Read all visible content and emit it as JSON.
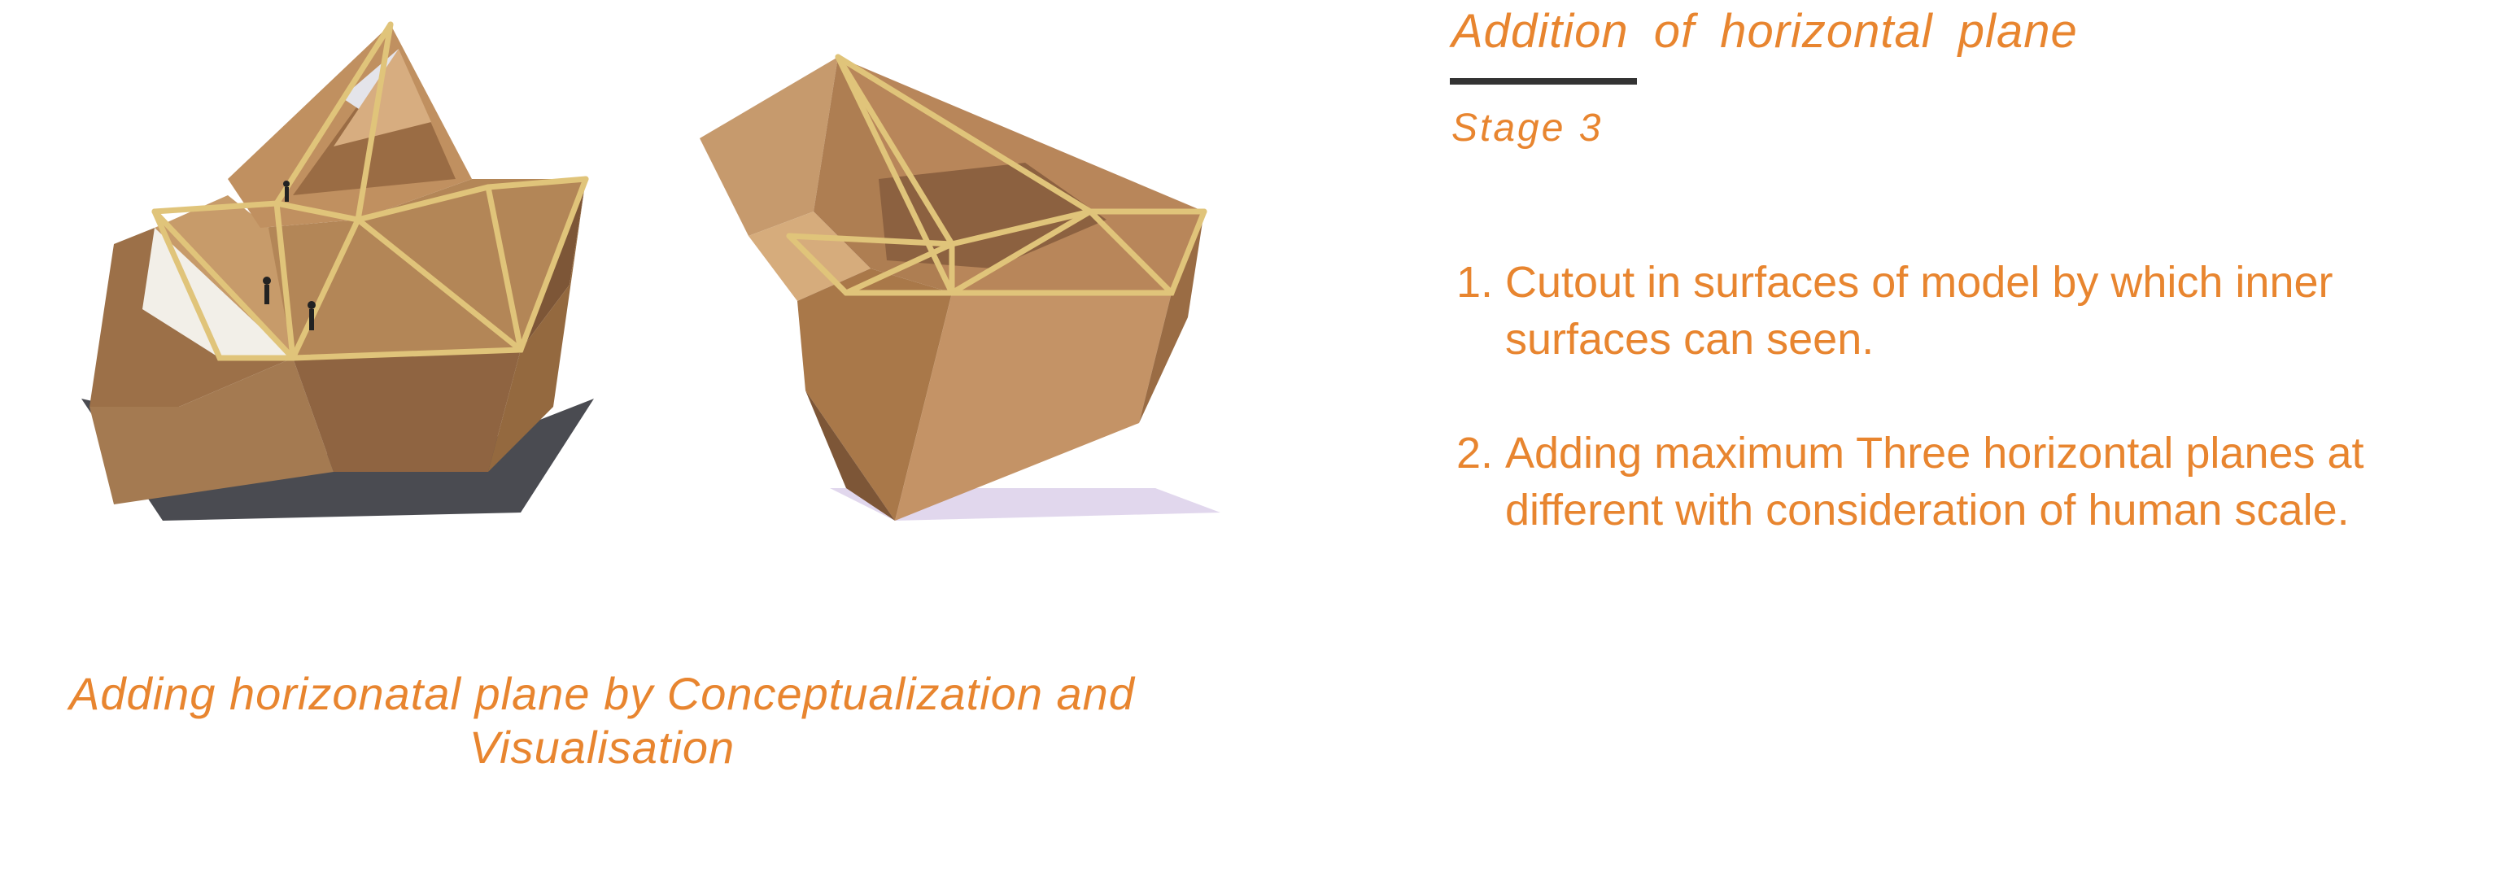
{
  "header": {
    "title": "Addition  of  horizontal  plane",
    "stage": "Stage 3"
  },
  "points": [
    {
      "number": "1.",
      "text": "Cutout in surfaces of model by which inner\nsurfaces can  seen."
    },
    {
      "number": "2.",
      "text": "Adding maximum Three horizontal planes at\ndifferent  with consideration of human scale."
    }
  ],
  "caption": {
    "line1": "Adding horizonatal plane by Conceptualization and",
    "line2": "Visualisation"
  },
  "colors": {
    "accent": "#e8852f",
    "rule": "#333333",
    "cardboard": "#b8865a",
    "cardboard_dark": "#8a5f3a",
    "frame": "#e0c47a"
  }
}
